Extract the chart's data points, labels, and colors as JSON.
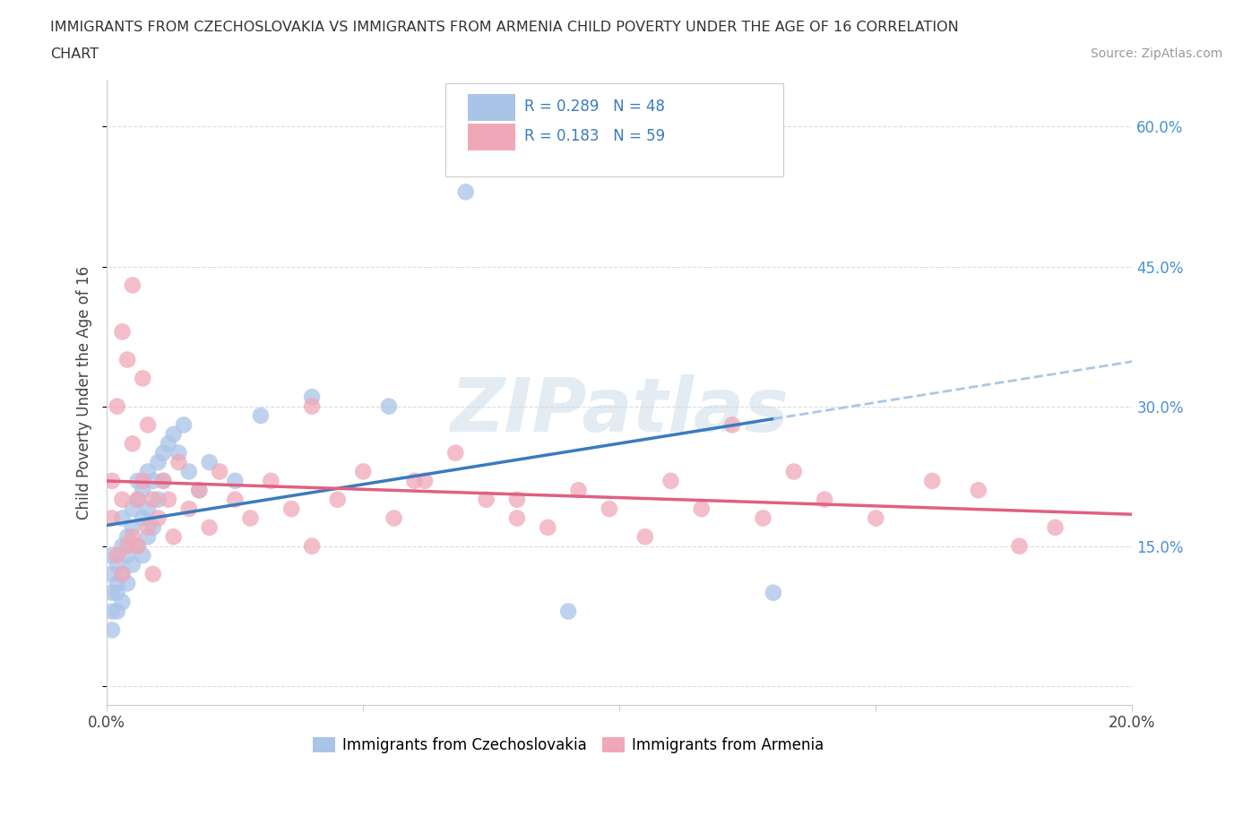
{
  "title_line1": "IMMIGRANTS FROM CZECHOSLOVAKIA VS IMMIGRANTS FROM ARMENIA CHILD POVERTY UNDER THE AGE OF 16 CORRELATION",
  "title_line2": "CHART",
  "source": "Source: ZipAtlas.com",
  "ylabel": "Child Poverty Under the Age of 16",
  "xlim": [
    0.0,
    0.2
  ],
  "ylim": [
    -0.02,
    0.65
  ],
  "ytick_vals": [
    0.0,
    0.15,
    0.3,
    0.45,
    0.6
  ],
  "xtick_vals": [
    0.0,
    0.05,
    0.1,
    0.15,
    0.2
  ],
  "R_czech": 0.289,
  "N_czech": 48,
  "R_armenia": 0.183,
  "N_armenia": 59,
  "color_czech": "#aac4e8",
  "color_armenia": "#f0a8b8",
  "trendline_czech_solid": "#3a7bbf",
  "trendline_czech_dashed": "#aac8e8",
  "trendline_armenia": "#e06080",
  "watermark_color": "#c8d8e8",
  "watermark_text": "ZIPatlas",
  "legend_label_czech": "Immigrants from Czechoslovakia",
  "legend_label_armenia": "Immigrants from Armenia",
  "czech_x": [
    0.001,
    0.001,
    0.001,
    0.001,
    0.001,
    0.002,
    0.002,
    0.002,
    0.002,
    0.003,
    0.003,
    0.003,
    0.003,
    0.004,
    0.004,
    0.004,
    0.005,
    0.005,
    0.005,
    0.006,
    0.006,
    0.006,
    0.007,
    0.007,
    0.007,
    0.008,
    0.008,
    0.008,
    0.009,
    0.009,
    0.01,
    0.01,
    0.011,
    0.011,
    0.012,
    0.013,
    0.014,
    0.015,
    0.016,
    0.018,
    0.02,
    0.025,
    0.03,
    0.04,
    0.055,
    0.07,
    0.09,
    0.13
  ],
  "czech_y": [
    0.08,
    0.1,
    0.12,
    0.14,
    0.06,
    0.1,
    0.13,
    0.08,
    0.11,
    0.15,
    0.12,
    0.18,
    0.09,
    0.16,
    0.11,
    0.14,
    0.17,
    0.13,
    0.19,
    0.2,
    0.15,
    0.22,
    0.18,
    0.21,
    0.14,
    0.23,
    0.19,
    0.16,
    0.22,
    0.17,
    0.24,
    0.2,
    0.25,
    0.22,
    0.26,
    0.27,
    0.25,
    0.28,
    0.23,
    0.21,
    0.24,
    0.22,
    0.29,
    0.31,
    0.3,
    0.53,
    0.08,
    0.1
  ],
  "armenia_x": [
    0.001,
    0.001,
    0.002,
    0.002,
    0.003,
    0.003,
    0.003,
    0.004,
    0.004,
    0.005,
    0.005,
    0.005,
    0.006,
    0.006,
    0.007,
    0.007,
    0.008,
    0.008,
    0.009,
    0.009,
    0.01,
    0.011,
    0.012,
    0.013,
    0.014,
    0.016,
    0.018,
    0.02,
    0.022,
    0.025,
    0.028,
    0.032,
    0.036,
    0.04,
    0.045,
    0.05,
    0.056,
    0.062,
    0.068,
    0.074,
    0.08,
    0.086,
    0.092,
    0.098,
    0.105,
    0.11,
    0.116,
    0.122,
    0.128,
    0.134,
    0.14,
    0.15,
    0.161,
    0.17,
    0.178,
    0.185,
    0.04,
    0.06,
    0.08
  ],
  "armenia_y": [
    0.18,
    0.22,
    0.14,
    0.3,
    0.38,
    0.12,
    0.2,
    0.35,
    0.15,
    0.43,
    0.16,
    0.26,
    0.2,
    0.15,
    0.33,
    0.22,
    0.28,
    0.17,
    0.2,
    0.12,
    0.18,
    0.22,
    0.2,
    0.16,
    0.24,
    0.19,
    0.21,
    0.17,
    0.23,
    0.2,
    0.18,
    0.22,
    0.19,
    0.15,
    0.2,
    0.23,
    0.18,
    0.22,
    0.25,
    0.2,
    0.18,
    0.17,
    0.21,
    0.19,
    0.16,
    0.22,
    0.19,
    0.28,
    0.18,
    0.23,
    0.2,
    0.18,
    0.22,
    0.21,
    0.15,
    0.17,
    0.3,
    0.22,
    0.2
  ]
}
